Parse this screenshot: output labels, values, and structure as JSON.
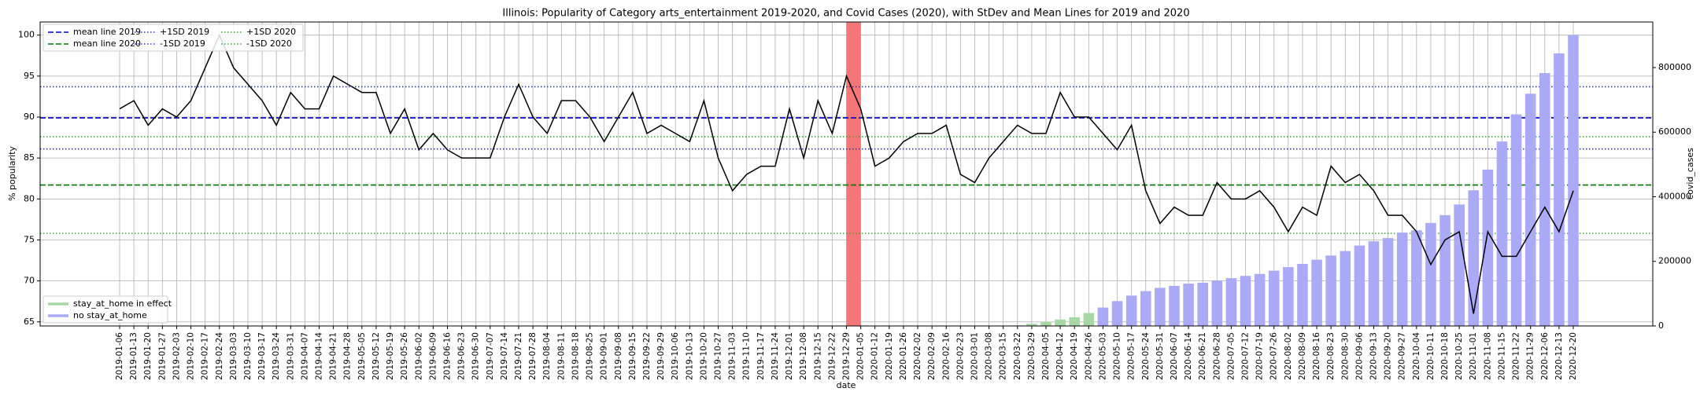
{
  "chart_data": {
    "type": "bar_line",
    "title": "Illinois: Popularity of Category arts_entertainment 2019-2020, and Covid Cases (2020), with StDev and Mean Lines for 2019 and 2020",
    "x_label": "date",
    "y_label": "% popularity",
    "y2_label": "covid_cases",
    "categories": [
      "2019-01-06",
      "2019-01-13",
      "2019-01-20",
      "2019-01-27",
      "2019-02-03",
      "2019-02-10",
      "2019-02-17",
      "2019-02-24",
      "2019-03-03",
      "2019-03-10",
      "2019-03-17",
      "2019-03-24",
      "2019-03-31",
      "2019-04-07",
      "2019-04-14",
      "2019-04-21",
      "2019-04-28",
      "2019-05-05",
      "2019-05-12",
      "2019-05-19",
      "2019-05-26",
      "2019-06-02",
      "2019-06-09",
      "2019-06-16",
      "2019-06-23",
      "2019-06-30",
      "2019-07-07",
      "2019-07-14",
      "2019-07-21",
      "2019-07-28",
      "2019-08-04",
      "2019-08-11",
      "2019-08-18",
      "2019-08-25",
      "2019-09-01",
      "2019-09-08",
      "2019-09-15",
      "2019-09-22",
      "2019-09-29",
      "2019-10-06",
      "2019-10-13",
      "2019-10-20",
      "2019-10-27",
      "2019-11-03",
      "2019-11-10",
      "2019-11-17",
      "2019-11-24",
      "2019-12-01",
      "2019-12-08",
      "2019-12-15",
      "2019-12-22",
      "2019-12-29",
      "2020-01-05",
      "2020-01-12",
      "2020-01-19",
      "2020-01-26",
      "2020-02-02",
      "2020-02-09",
      "2020-02-16",
      "2020-02-23",
      "2020-03-01",
      "2020-03-08",
      "2020-03-15",
      "2020-03-22",
      "2020-03-29",
      "2020-04-05",
      "2020-04-12",
      "2020-04-19",
      "2020-04-26",
      "2020-05-03",
      "2020-05-10",
      "2020-05-17",
      "2020-05-24",
      "2020-05-31",
      "2020-06-07",
      "2020-06-14",
      "2020-06-21",
      "2020-06-28",
      "2020-07-05",
      "2020-07-12",
      "2020-07-19",
      "2020-07-26",
      "2020-08-02",
      "2020-08-09",
      "2020-08-16",
      "2020-08-23",
      "2020-08-30",
      "2020-09-06",
      "2020-09-13",
      "2020-09-20",
      "2020-09-27",
      "2020-10-04",
      "2020-10-11",
      "2020-10-18",
      "2020-10-25",
      "2020-11-01",
      "2020-11-08",
      "2020-11-15",
      "2020-11-22",
      "2020-11-29",
      "2020-12-06",
      "2020-12-13",
      "2020-12-20"
    ],
    "popularity": {
      "color": "#000000",
      "values": [
        91,
        92,
        89,
        91,
        90,
        92,
        96,
        100,
        96,
        94,
        92,
        89,
        93,
        91,
        91,
        95,
        94,
        93,
        93,
        88,
        91,
        86,
        88,
        86,
        85,
        85,
        85,
        90,
        94,
        90,
        88,
        92,
        92,
        90,
        87,
        90,
        93,
        88,
        89,
        88,
        87,
        92,
        85,
        81,
        83,
        84,
        84,
        91,
        85,
        92,
        88,
        95,
        91,
        84,
        85,
        87,
        88,
        88,
        89,
        83,
        82,
        85,
        87,
        89,
        88,
        88,
        93,
        90,
        90,
        88,
        86,
        89,
        81,
        77,
        79,
        78,
        78,
        82,
        80,
        80,
        81,
        79,
        76,
        79,
        78,
        84,
        82,
        83,
        81,
        78,
        78,
        76,
        72,
        75,
        76,
        66,
        76,
        73,
        73,
        76,
        79,
        76,
        81
      ]
    },
    "series": [
      {
        "name": "stay_at_home in effect",
        "color": "#a6d8a6",
        "axis": "y2",
        "values": [
          null,
          null,
          null,
          null,
          null,
          null,
          null,
          null,
          null,
          null,
          null,
          null,
          null,
          null,
          null,
          null,
          null,
          null,
          null,
          null,
          null,
          null,
          null,
          null,
          null,
          null,
          null,
          null,
          null,
          null,
          null,
          null,
          null,
          null,
          null,
          null,
          null,
          null,
          null,
          null,
          null,
          null,
          null,
          null,
          null,
          null,
          null,
          null,
          null,
          null,
          null,
          null,
          null,
          null,
          null,
          null,
          null,
          null,
          null,
          null,
          null,
          null,
          null,
          1700,
          6700,
          13400,
          20000,
          27000,
          40000,
          null,
          null,
          null,
          null,
          null,
          null,
          null,
          null,
          null,
          null,
          null,
          null,
          null,
          null,
          null,
          null,
          null,
          null,
          null,
          null,
          null,
          null,
          null,
          null,
          null,
          null,
          null,
          null,
          null,
          null,
          null,
          null,
          null,
          null
        ]
      },
      {
        "name": "no stay_at_home",
        "color": "#aaaaf6",
        "axis": "y2",
        "values": [
          null,
          null,
          null,
          null,
          null,
          null,
          null,
          null,
          null,
          null,
          null,
          null,
          null,
          null,
          null,
          null,
          null,
          null,
          null,
          null,
          null,
          null,
          null,
          null,
          null,
          null,
          null,
          null,
          null,
          null,
          null,
          null,
          null,
          null,
          null,
          null,
          null,
          null,
          null,
          null,
          null,
          null,
          null,
          null,
          null,
          null,
          null,
          null,
          null,
          null,
          null,
          null,
          null,
          null,
          null,
          null,
          null,
          null,
          null,
          null,
          null,
          null,
          null,
          null,
          null,
          null,
          null,
          null,
          null,
          57000,
          77000,
          94000,
          108000,
          118000,
          124000,
          131000,
          134000,
          141000,
          148000,
          155000,
          161000,
          171000,
          182000,
          192000,
          205000,
          218000,
          232000,
          249000,
          262000,
          272000,
          289000,
          296000,
          319000,
          343000,
          376000,
          420000,
          484000,
          571000,
          655000,
          719000,
          783000,
          844000,
          901000
        ]
      }
    ],
    "reference_lines": [
      {
        "name": "mean line 2019",
        "value": 89.9,
        "color": "#0000cc",
        "dash": "dashed"
      },
      {
        "name": "mean line 2020",
        "value": 81.7,
        "color": "#007700",
        "dash": "dashed"
      },
      {
        "name": "+1SD 2019",
        "value": 93.7,
        "color": "#3333dd",
        "dash": "dotted"
      },
      {
        "name": "-1SD 2019",
        "value": 86.1,
        "color": "#3333dd",
        "dash": "dotted"
      },
      {
        "name": "+1SD 2020",
        "value": 87.6,
        "color": "#33aa33",
        "dash": "dotted"
      },
      {
        "name": "-1SD 2020",
        "value": 75.8,
        "color": "#33aa33",
        "dash": "dotted"
      }
    ],
    "highlight": {
      "from": "2019-12-29",
      "to": "2020-01-05",
      "color": "#f47777"
    },
    "ylim": [
      64.5,
      101.6
    ],
    "yticks": [
      65,
      70,
      75,
      80,
      85,
      90,
      95,
      100
    ],
    "y2lim": [
      0,
      941000
    ],
    "y2ticks": [
      0,
      200000,
      400000,
      600000,
      800000
    ],
    "grid": true
  }
}
